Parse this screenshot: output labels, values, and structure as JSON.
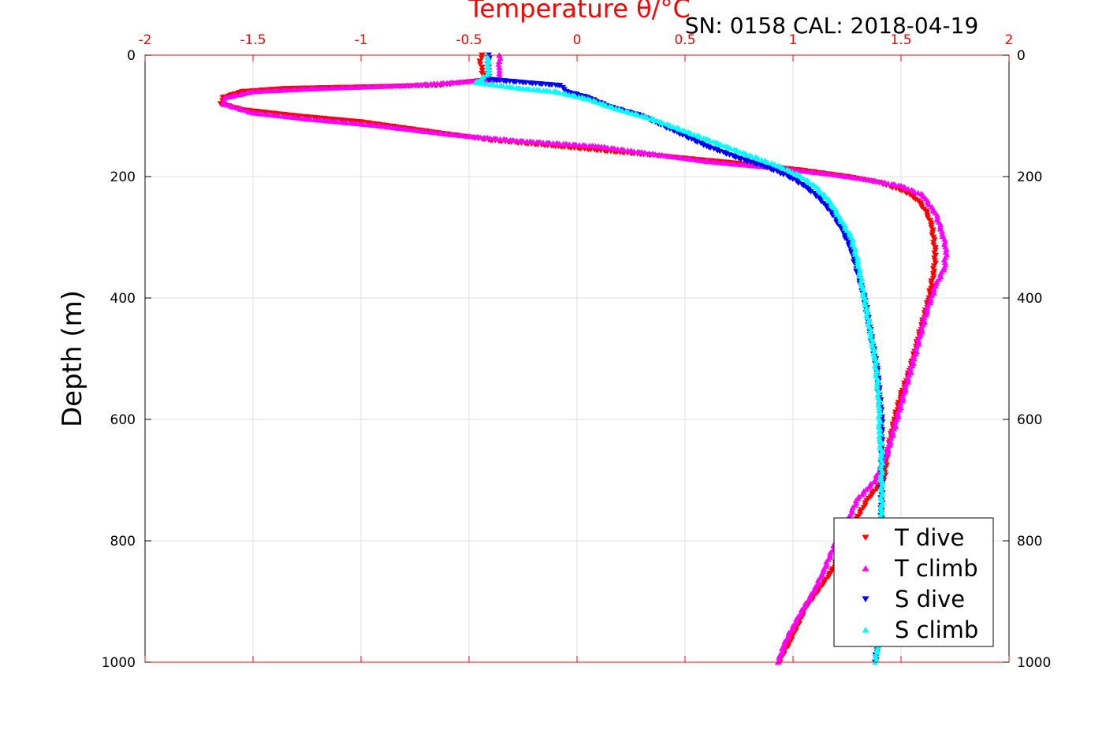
{
  "header": {
    "title_top": "Temperature θ/°C",
    "serial_cal": "SN: 0158  CAL: 2018-04-19"
  },
  "legend": {
    "items": [
      {
        "label": "T dive",
        "color": "#ff0000",
        "marker": "triangle-down"
      },
      {
        "label": "T climb",
        "color": "#ff00ff",
        "marker": "triangle-up"
      },
      {
        "label": "S dive",
        "color": "#0000ff",
        "marker": "triangle-down"
      },
      {
        "label": "S climb",
        "color": "#00ffff",
        "marker": "triangle-up"
      }
    ]
  },
  "chart_data": {
    "type": "scatter",
    "title": "",
    "xlabel": "Temperature θ/°C",
    "ylabel": "Depth (m)",
    "xlim": [
      -2,
      2
    ],
    "ylim": [
      0,
      1000
    ],
    "y_reversed": true,
    "x_ticks": [
      "-2",
      "-1.5",
      "-1",
      "-0.5",
      "0",
      "0.5",
      "1",
      "1.5",
      "2"
    ],
    "y_ticks": [
      "0",
      "200",
      "400",
      "600",
      "800",
      "1000"
    ],
    "y_ticks_right": [
      "0",
      "200",
      "400",
      "600",
      "800",
      "1000"
    ],
    "grid": true,
    "legend_position": "bottom-right",
    "colors": {
      "top_axis": "#ff0000",
      "axes": "#000000",
      "grid": "#e0e0e0"
    },
    "series": [
      {
        "name": "T dive",
        "color": "#ff0000",
        "marker": "triangle-down",
        "points": [
          [
            -0.44,
            0
          ],
          [
            -0.45,
            10
          ],
          [
            -0.44,
            20
          ],
          [
            -0.44,
            30
          ],
          [
            -0.4,
            40
          ],
          [
            -0.65,
            50
          ],
          [
            -1.35,
            55
          ],
          [
            -1.55,
            60
          ],
          [
            -1.64,
            70
          ],
          [
            -1.65,
            80
          ],
          [
            -1.55,
            90
          ],
          [
            -1.3,
            100
          ],
          [
            -1.0,
            110
          ],
          [
            -0.7,
            125
          ],
          [
            -0.4,
            140
          ],
          [
            -0.1,
            150
          ],
          [
            0.2,
            160
          ],
          [
            0.5,
            170
          ],
          [
            0.8,
            180
          ],
          [
            1.05,
            190
          ],
          [
            1.25,
            200
          ],
          [
            1.4,
            210
          ],
          [
            1.52,
            225
          ],
          [
            1.58,
            240
          ],
          [
            1.62,
            260
          ],
          [
            1.64,
            280
          ],
          [
            1.65,
            300
          ],
          [
            1.66,
            330
          ],
          [
            1.65,
            360
          ],
          [
            1.63,
            400
          ],
          [
            1.6,
            440
          ],
          [
            1.57,
            480
          ],
          [
            1.54,
            520
          ],
          [
            1.5,
            560
          ],
          [
            1.47,
            600
          ],
          [
            1.44,
            650
          ],
          [
            1.42,
            700
          ],
          [
            1.35,
            730
          ],
          [
            1.3,
            760
          ],
          [
            1.25,
            800
          ],
          [
            1.18,
            850
          ],
          [
            1.12,
            880
          ],
          [
            1.06,
            910
          ],
          [
            1.02,
            940
          ],
          [
            0.98,
            970
          ],
          [
            0.95,
            990
          ],
          [
            0.94,
            1000
          ]
        ]
      },
      {
        "name": "T climb",
        "color": "#ff00ff",
        "marker": "triangle-up",
        "points": [
          [
            -0.36,
            0
          ],
          [
            -0.36,
            10
          ],
          [
            -0.36,
            20
          ],
          [
            -0.36,
            30
          ],
          [
            -0.36,
            40
          ],
          [
            -0.8,
            50
          ],
          [
            -1.2,
            55
          ],
          [
            -1.5,
            60
          ],
          [
            -1.63,
            70
          ],
          [
            -1.64,
            80
          ],
          [
            -1.5,
            95
          ],
          [
            -1.25,
            105
          ],
          [
            -0.95,
            115
          ],
          [
            -0.6,
            130
          ],
          [
            -0.3,
            140
          ],
          [
            0.1,
            150
          ],
          [
            0.3,
            160
          ],
          [
            0.6,
            175
          ],
          [
            0.9,
            185
          ],
          [
            1.15,
            195
          ],
          [
            1.35,
            205
          ],
          [
            1.5,
            215
          ],
          [
            1.6,
            230
          ],
          [
            1.66,
            260
          ],
          [
            1.69,
            290
          ],
          [
            1.71,
            320
          ],
          [
            1.7,
            350
          ],
          [
            1.66,
            380
          ],
          [
            1.62,
            420
          ],
          [
            1.59,
            460
          ],
          [
            1.56,
            500
          ],
          [
            1.52,
            550
          ],
          [
            1.48,
            600
          ],
          [
            1.44,
            650
          ],
          [
            1.38,
            700
          ],
          [
            1.3,
            730
          ],
          [
            1.26,
            760
          ],
          [
            1.2,
            800
          ],
          [
            1.14,
            850
          ],
          [
            1.1,
            880
          ],
          [
            1.05,
            910
          ],
          [
            1.0,
            940
          ],
          [
            0.96,
            970
          ],
          [
            0.93,
            1000
          ]
        ]
      },
      {
        "name": "S dive",
        "color": "#0000ff",
        "marker": "triangle-down",
        "points": [
          [
            -0.41,
            0
          ],
          [
            -0.41,
            10
          ],
          [
            -0.41,
            20
          ],
          [
            -0.41,
            30
          ],
          [
            -0.41,
            40
          ],
          [
            -0.08,
            50
          ],
          [
            -0.05,
            60
          ],
          [
            0.05,
            70
          ],
          [
            0.15,
            85
          ],
          [
            0.3,
            100
          ],
          [
            0.45,
            125
          ],
          [
            0.6,
            150
          ],
          [
            0.75,
            170
          ],
          [
            0.88,
            185
          ],
          [
            0.98,
            200
          ],
          [
            1.05,
            215
          ],
          [
            1.12,
            235
          ],
          [
            1.18,
            260
          ],
          [
            1.23,
            290
          ],
          [
            1.27,
            320
          ],
          [
            1.3,
            360
          ],
          [
            1.33,
            400
          ],
          [
            1.35,
            440
          ],
          [
            1.37,
            480
          ],
          [
            1.39,
            520
          ],
          [
            1.4,
            560
          ],
          [
            1.41,
            600
          ],
          [
            1.41,
            650
          ],
          [
            1.41,
            700
          ],
          [
            1.41,
            750
          ],
          [
            1.41,
            800
          ],
          [
            1.4,
            850
          ],
          [
            1.4,
            900
          ],
          [
            1.39,
            950
          ],
          [
            1.39,
            980
          ],
          [
            1.38,
            1000
          ]
        ]
      },
      {
        "name": "S climb",
        "color": "#00ffff",
        "marker": "triangle-up",
        "points": [
          [
            -0.42,
            0
          ],
          [
            -0.41,
            10
          ],
          [
            -0.41,
            20
          ],
          [
            -0.41,
            30
          ],
          [
            -0.47,
            45
          ],
          [
            -0.25,
            55
          ],
          [
            -0.1,
            60
          ],
          [
            0.05,
            72
          ],
          [
            0.18,
            88
          ],
          [
            0.35,
            105
          ],
          [
            0.5,
            125
          ],
          [
            0.65,
            145
          ],
          [
            0.8,
            165
          ],
          [
            0.93,
            182
          ],
          [
            1.03,
            198
          ],
          [
            1.1,
            215
          ],
          [
            1.17,
            240
          ],
          [
            1.22,
            270
          ],
          [
            1.27,
            300
          ],
          [
            1.3,
            340
          ],
          [
            1.32,
            380
          ],
          [
            1.34,
            420
          ],
          [
            1.36,
            460
          ],
          [
            1.38,
            500
          ],
          [
            1.39,
            540
          ],
          [
            1.4,
            580
          ],
          [
            1.4,
            620
          ],
          [
            1.41,
            660
          ],
          [
            1.41,
            700
          ],
          [
            1.41,
            750
          ],
          [
            1.41,
            800
          ],
          [
            1.41,
            850
          ],
          [
            1.4,
            900
          ],
          [
            1.39,
            950
          ],
          [
            1.39,
            980
          ],
          [
            1.38,
            1000
          ]
        ]
      }
    ]
  }
}
